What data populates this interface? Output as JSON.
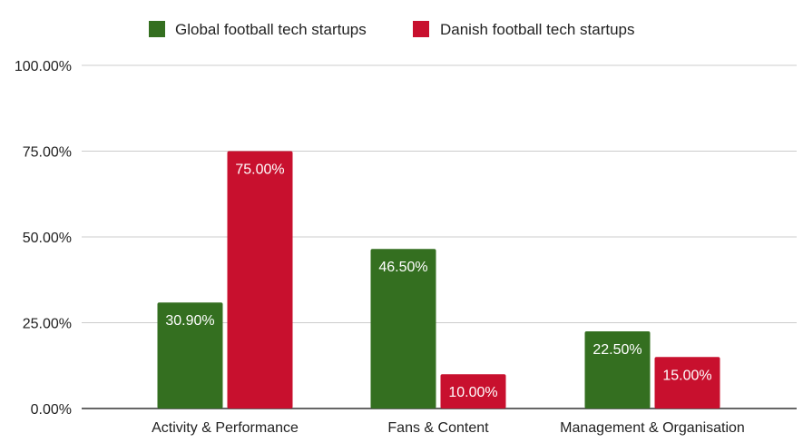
{
  "chart_data": {
    "type": "bar",
    "categories": [
      "Activity & Performance",
      "Fans & Content",
      "Management & Organisation"
    ],
    "series": [
      {
        "name": "Global football tech startups",
        "values": [
          30.9,
          46.5,
          22.5
        ],
        "labels": [
          "30.90%",
          "46.50%",
          "22.50%"
        ],
        "color": "#346F20"
      },
      {
        "name": "Danish football tech startups",
        "values": [
          75.0,
          10.0,
          15.0
        ],
        "labels": [
          "75.00%",
          "10.00%",
          "15.00%"
        ],
        "color": "#C8102E"
      }
    ],
    "ylim": [
      0,
      100
    ],
    "yticks": [
      0,
      25,
      50,
      75,
      100
    ],
    "ytick_labels": [
      "0.00%",
      "25.00%",
      "50.00%",
      "75.00%",
      "100.00%"
    ],
    "grid": true,
    "legend_position": "top-center"
  }
}
